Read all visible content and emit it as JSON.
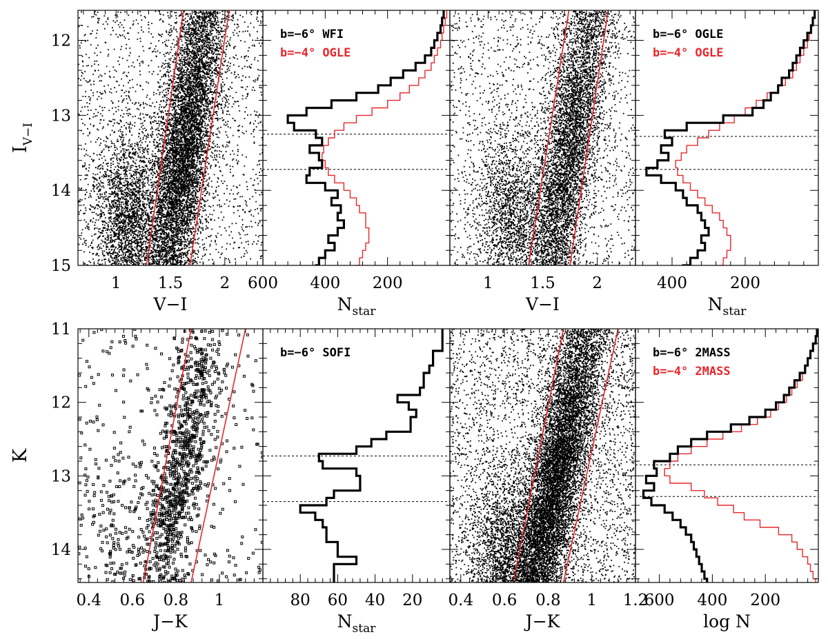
{
  "colors": {
    "black": "#000000",
    "red": "#e8262b"
  },
  "chart_data": [
    {
      "id": "p1",
      "type": "scatter",
      "panel": "cmd",
      "xlabel": "V−I",
      "ylabel": "I",
      "ylabel_sub": "V−I",
      "xlim": [
        0.65,
        2.35
      ],
      "ylim": [
        15,
        11.6
      ],
      "xticks": [
        {
          "v": 1,
          "label": "1"
        },
        {
          "v": 1.5,
          "label": "1.5"
        },
        {
          "v": 2,
          "label": "2"
        }
      ],
      "yticks": [
        {
          "v": 12,
          "label": "12"
        },
        {
          "v": 13,
          "label": "13"
        },
        {
          "v": 14,
          "label": "14"
        },
        {
          "v": 15,
          "label": "15"
        }
      ],
      "lines": [
        {
          "x": [
            1.28,
            1.62
          ],
          "y": [
            15,
            11.6
          ]
        },
        {
          "x": [
            1.68,
            2.04
          ],
          "y": [
            15,
            11.6
          ]
        }
      ],
      "density": {
        "n": 9000,
        "cx": 1.62,
        "cy": 13.5,
        "bg_n": 1800,
        "sec_n": 2600,
        "sec_cx": 1.1,
        "sec_cy": 14.4
      }
    },
    {
      "id": "p2",
      "type": "step",
      "panel": "hist",
      "xlabel": "N",
      "xlabel_sub": "star",
      "xlim": [
        600,
        0
      ],
      "ylim": [
        15,
        11.6
      ],
      "xticks": [
        {
          "v": 600,
          "label": "600"
        },
        {
          "v": 400,
          "label": "400"
        },
        {
          "v": 200,
          "label": "200"
        }
      ],
      "hlines": [
        13.25,
        13.72
      ],
      "legend": [
        {
          "label": "b=−6° WFI",
          "color": "black"
        },
        {
          "label": "b=−4° OGLE",
          "color": "red"
        }
      ],
      "series": [
        {
          "name": "b=−6° WFI",
          "color": "black",
          "width": 3.2,
          "y": [
            11.6,
            11.7,
            11.8,
            11.9,
            12.0,
            12.1,
            12.2,
            12.3,
            12.4,
            12.5,
            12.6,
            12.7,
            12.8,
            12.9,
            13.0,
            13.1,
            13.2,
            13.3,
            13.4,
            13.5,
            13.6,
            13.7,
            13.8,
            13.9,
            14.0,
            14.1,
            14.2,
            14.3,
            14.4,
            14.5,
            14.6,
            14.7,
            14.8,
            14.9,
            15.0
          ],
          "x": [
            20,
            25,
            30,
            40,
            50,
            60,
            80,
            110,
            150,
            190,
            230,
            300,
            380,
            460,
            520,
            500,
            430,
            410,
            450,
            420,
            410,
            450,
            460,
            400,
            360,
            380,
            350,
            360,
            340,
            360,
            390,
            370,
            400,
            420,
            430
          ]
        },
        {
          "name": "b=−4° OGLE",
          "color": "red",
          "width": 1.4,
          "y": [
            11.6,
            11.7,
            11.8,
            11.9,
            12.0,
            12.1,
            12.2,
            12.3,
            12.4,
            12.5,
            12.6,
            12.7,
            12.8,
            12.9,
            13.0,
            13.1,
            13.2,
            13.3,
            13.4,
            13.5,
            13.6,
            13.7,
            13.8,
            13.9,
            14.0,
            14.1,
            14.2,
            14.3,
            14.4,
            14.5,
            14.6,
            14.7,
            14.8,
            14.9,
            15.0
          ],
          "x": [
            10,
            15,
            20,
            25,
            30,
            40,
            50,
            60,
            80,
            100,
            130,
            160,
            200,
            250,
            300,
            340,
            370,
            390,
            405,
            410,
            400,
            390,
            370,
            340,
            320,
            300,
            290,
            270,
            270,
            260,
            260,
            270,
            280,
            290,
            300
          ]
        }
      ]
    },
    {
      "id": "p3",
      "type": "scatter",
      "panel": "cmd",
      "xlabel": "V−I",
      "xlim": [
        0.65,
        2.35
      ],
      "ylim": [
        15,
        11.6
      ],
      "xticks": [
        {
          "v": 1,
          "label": "1"
        },
        {
          "v": 1.5,
          "label": "1.5"
        },
        {
          "v": 2,
          "label": "2"
        }
      ],
      "lines": [
        {
          "x": [
            1.37,
            1.74
          ],
          "y": [
            15,
            11.6
          ]
        },
        {
          "x": [
            1.75,
            2.1
          ],
          "y": [
            15,
            11.6
          ]
        }
      ],
      "density": {
        "n": 6500,
        "cx": 1.72,
        "cy": 13.6,
        "bg_n": 1600,
        "sec_n": 1800,
        "sec_cx": 1.2,
        "sec_cy": 14.3
      }
    },
    {
      "id": "p4",
      "type": "step",
      "panel": "hist",
      "xlabel": "N",
      "xlabel_sub": "star",
      "xlim": [
        500,
        0
      ],
      "ylim": [
        15,
        11.6
      ],
      "xticks": [
        {
          "v": 400,
          "label": "400"
        },
        {
          "v": 200,
          "label": "200"
        }
      ],
      "hlines": [
        13.28,
        13.72
      ],
      "legend": [
        {
          "label": "b=−6° OGLE",
          "color": "black"
        },
        {
          "label": "b=−4° OGLE",
          "color": "red"
        }
      ],
      "series": [
        {
          "name": "b=−6° OGLE",
          "color": "black",
          "width": 3.2,
          "y": [
            11.6,
            11.7,
            11.8,
            11.9,
            12.0,
            12.1,
            12.2,
            12.3,
            12.4,
            12.5,
            12.6,
            12.7,
            12.8,
            12.9,
            13.0,
            13.1,
            13.2,
            13.3,
            13.4,
            13.5,
            13.6,
            13.7,
            13.8,
            13.9,
            14.0,
            14.1,
            14.2,
            14.3,
            14.4,
            14.5,
            14.6,
            14.7,
            14.8,
            14.9,
            15.0
          ],
          "x": [
            10,
            15,
            20,
            30,
            40,
            50,
            60,
            70,
            80,
            100,
            110,
            130,
            150,
            180,
            260,
            360,
            420,
            400,
            430,
            410,
            440,
            470,
            430,
            390,
            370,
            360,
            330,
            320,
            310,
            300,
            320,
            310,
            330,
            350,
            370
          ]
        },
        {
          "name": "b=−4° OGLE",
          "color": "red",
          "width": 1.4,
          "y": [
            11.6,
            11.7,
            11.8,
            11.9,
            12.0,
            12.1,
            12.2,
            12.3,
            12.4,
            12.5,
            12.6,
            12.7,
            12.8,
            12.9,
            13.0,
            13.1,
            13.2,
            13.3,
            13.4,
            13.5,
            13.6,
            13.7,
            13.8,
            13.9,
            14.0,
            14.1,
            14.2,
            14.3,
            14.4,
            14.5,
            14.6,
            14.7,
            14.8,
            14.9,
            15.0
          ],
          "x": [
            10,
            15,
            20,
            25,
            30,
            40,
            50,
            60,
            70,
            90,
            110,
            140,
            170,
            200,
            230,
            270,
            300,
            330,
            360,
            375,
            390,
            385,
            370,
            350,
            330,
            310,
            290,
            270,
            260,
            250,
            240,
            240,
            250,
            260,
            270
          ]
        }
      ]
    },
    {
      "id": "p5",
      "type": "scatter",
      "panel": "cmd",
      "marker": "square",
      "xlabel": "J−K",
      "ylabel": "K",
      "xlim": [
        0.35,
        1.2
      ],
      "ylim": [
        14.45,
        11
      ],
      "xticks": [
        {
          "v": 0.4,
          "label": "0.4"
        },
        {
          "v": 0.6,
          "label": "0.6"
        },
        {
          "v": 0.8,
          "label": "0.8"
        },
        {
          "v": 1,
          "label": "1"
        }
      ],
      "yticks": [
        {
          "v": 11,
          "label": "11"
        },
        {
          "v": 12,
          "label": "12"
        },
        {
          "v": 13,
          "label": "13"
        },
        {
          "v": 14,
          "label": "14"
        }
      ],
      "lines": [
        {
          "x": [
            0.65,
            0.87
          ],
          "y": [
            14.45,
            11
          ]
        },
        {
          "x": [
            0.87,
            1.12
          ],
          "y": [
            14.45,
            11
          ]
        }
      ],
      "density": {
        "n": 1300,
        "cx": 0.8,
        "cy": 13.2,
        "bg_n": 260,
        "sec_n": 140,
        "sec_cx": 0.5,
        "sec_cy": 13.8
      }
    },
    {
      "id": "p6",
      "type": "step",
      "panel": "hist",
      "xlabel": "N",
      "xlabel_sub": "star",
      "xlim": [
        100,
        0
      ],
      "ylim": [
        14.45,
        11
      ],
      "xticks": [
        {
          "v": 80,
          "label": "80"
        },
        {
          "v": 60,
          "label": "60"
        },
        {
          "v": 40,
          "label": "40"
        },
        {
          "v": 20,
          "label": "20"
        }
      ],
      "hlines": [
        12.73,
        13.35
      ],
      "legend": [
        {
          "label": "b=−6° SOFI",
          "color": "black"
        }
      ],
      "series": [
        {
          "name": "b=−6° SOFI",
          "color": "black",
          "width": 3.2,
          "y": [
            11.0,
            11.1,
            11.2,
            11.3,
            11.4,
            11.5,
            11.6,
            11.7,
            11.8,
            11.9,
            12.0,
            12.1,
            12.2,
            12.3,
            12.4,
            12.5,
            12.6,
            12.7,
            12.8,
            12.9,
            13.0,
            13.1,
            13.2,
            13.3,
            13.4,
            13.5,
            13.6,
            13.7,
            13.8,
            13.9,
            14.0,
            14.1,
            14.2,
            14.3,
            14.4
          ],
          "x": [
            4,
            4,
            4,
            9,
            9,
            11,
            14,
            14,
            16,
            28,
            22,
            18,
            21,
            21,
            34,
            42,
            50,
            70,
            68,
            50,
            48,
            48,
            62,
            66,
            80,
            72,
            68,
            66,
            66,
            60,
            60,
            50,
            62,
            62,
            62
          ]
        }
      ]
    },
    {
      "id": "p7",
      "type": "scatter",
      "panel": "cmd",
      "xlabel": "J−K",
      "xlim": [
        0.35,
        1.2
      ],
      "ylim": [
        14.45,
        11
      ],
      "xticks": [
        {
          "v": 0.4,
          "label": "0.4"
        },
        {
          "v": 0.6,
          "label": "0.6"
        },
        {
          "v": 0.8,
          "label": "0.8"
        },
        {
          "v": 1,
          "label": "1"
        },
        {
          "v": 1.2,
          "label": "1.2"
        }
      ],
      "lines": [
        {
          "x": [
            0.64,
            0.87
          ],
          "y": [
            14.45,
            11
          ]
        },
        {
          "x": [
            0.87,
            1.12
          ],
          "y": [
            14.45,
            11
          ]
        }
      ],
      "density": {
        "n": 11000,
        "cx": 0.83,
        "cy": 13.1,
        "bg_n": 3200,
        "sec_n": 2200,
        "sec_cx": 0.6,
        "sec_cy": 14.1
      }
    },
    {
      "id": "p8",
      "type": "step",
      "panel": "hist",
      "xlabel": "log N",
      "xlim": [
        690,
        0
      ],
      "ylim": [
        14.45,
        11
      ],
      "xticks": [
        {
          "v": 600,
          "label": "600"
        },
        {
          "v": 400,
          "label": "400"
        },
        {
          "v": 200,
          "label": "200"
        }
      ],
      "hlines": [
        12.85,
        13.28
      ],
      "legend": [
        {
          "label": "b=−6° 2MASS",
          "color": "black"
        },
        {
          "label": "b=−4° 2MASS",
          "color": "red"
        }
      ],
      "series": [
        {
          "name": "b=−6° 2MASS",
          "color": "black",
          "width": 3.2,
          "y": [
            11.0,
            11.1,
            11.2,
            11.3,
            11.4,
            11.5,
            11.6,
            11.7,
            11.8,
            11.9,
            12.0,
            12.1,
            12.2,
            12.3,
            12.4,
            12.5,
            12.6,
            12.7,
            12.8,
            12.9,
            13.0,
            13.1,
            13.2,
            13.3,
            13.4,
            13.5,
            13.6,
            13.7,
            13.8,
            13.9,
            14.0,
            14.1,
            14.2,
            14.3,
            14.4
          ],
          "x": [
            5,
            10,
            20,
            30,
            40,
            50,
            70,
            90,
            110,
            130,
            160,
            200,
            260,
            330,
            420,
            480,
            530,
            560,
            620,
            610,
            650,
            620,
            660,
            630,
            580,
            550,
            520,
            500,
            480,
            470,
            460,
            450,
            440,
            430,
            420
          ]
        },
        {
          "name": "b=−4° 2MASS",
          "color": "red",
          "width": 1.4,
          "y": [
            11.0,
            11.1,
            11.2,
            11.3,
            11.4,
            11.5,
            11.6,
            11.7,
            11.8,
            11.9,
            12.0,
            12.1,
            12.2,
            12.3,
            12.4,
            12.5,
            12.6,
            12.7,
            12.8,
            12.9,
            13.0,
            13.1,
            13.2,
            13.3,
            13.4,
            13.5,
            13.6,
            13.7,
            13.8,
            13.9,
            14.0,
            14.1,
            14.2,
            14.3,
            14.4
          ],
          "x": [
            5,
            10,
            20,
            30,
            40,
            50,
            60,
            80,
            100,
            120,
            150,
            180,
            230,
            290,
            360,
            420,
            480,
            530,
            560,
            580,
            560,
            480,
            430,
            380,
            320,
            280,
            220,
            150,
            100,
            80,
            60,
            40,
            30,
            20,
            10
          ]
        }
      ]
    }
  ]
}
